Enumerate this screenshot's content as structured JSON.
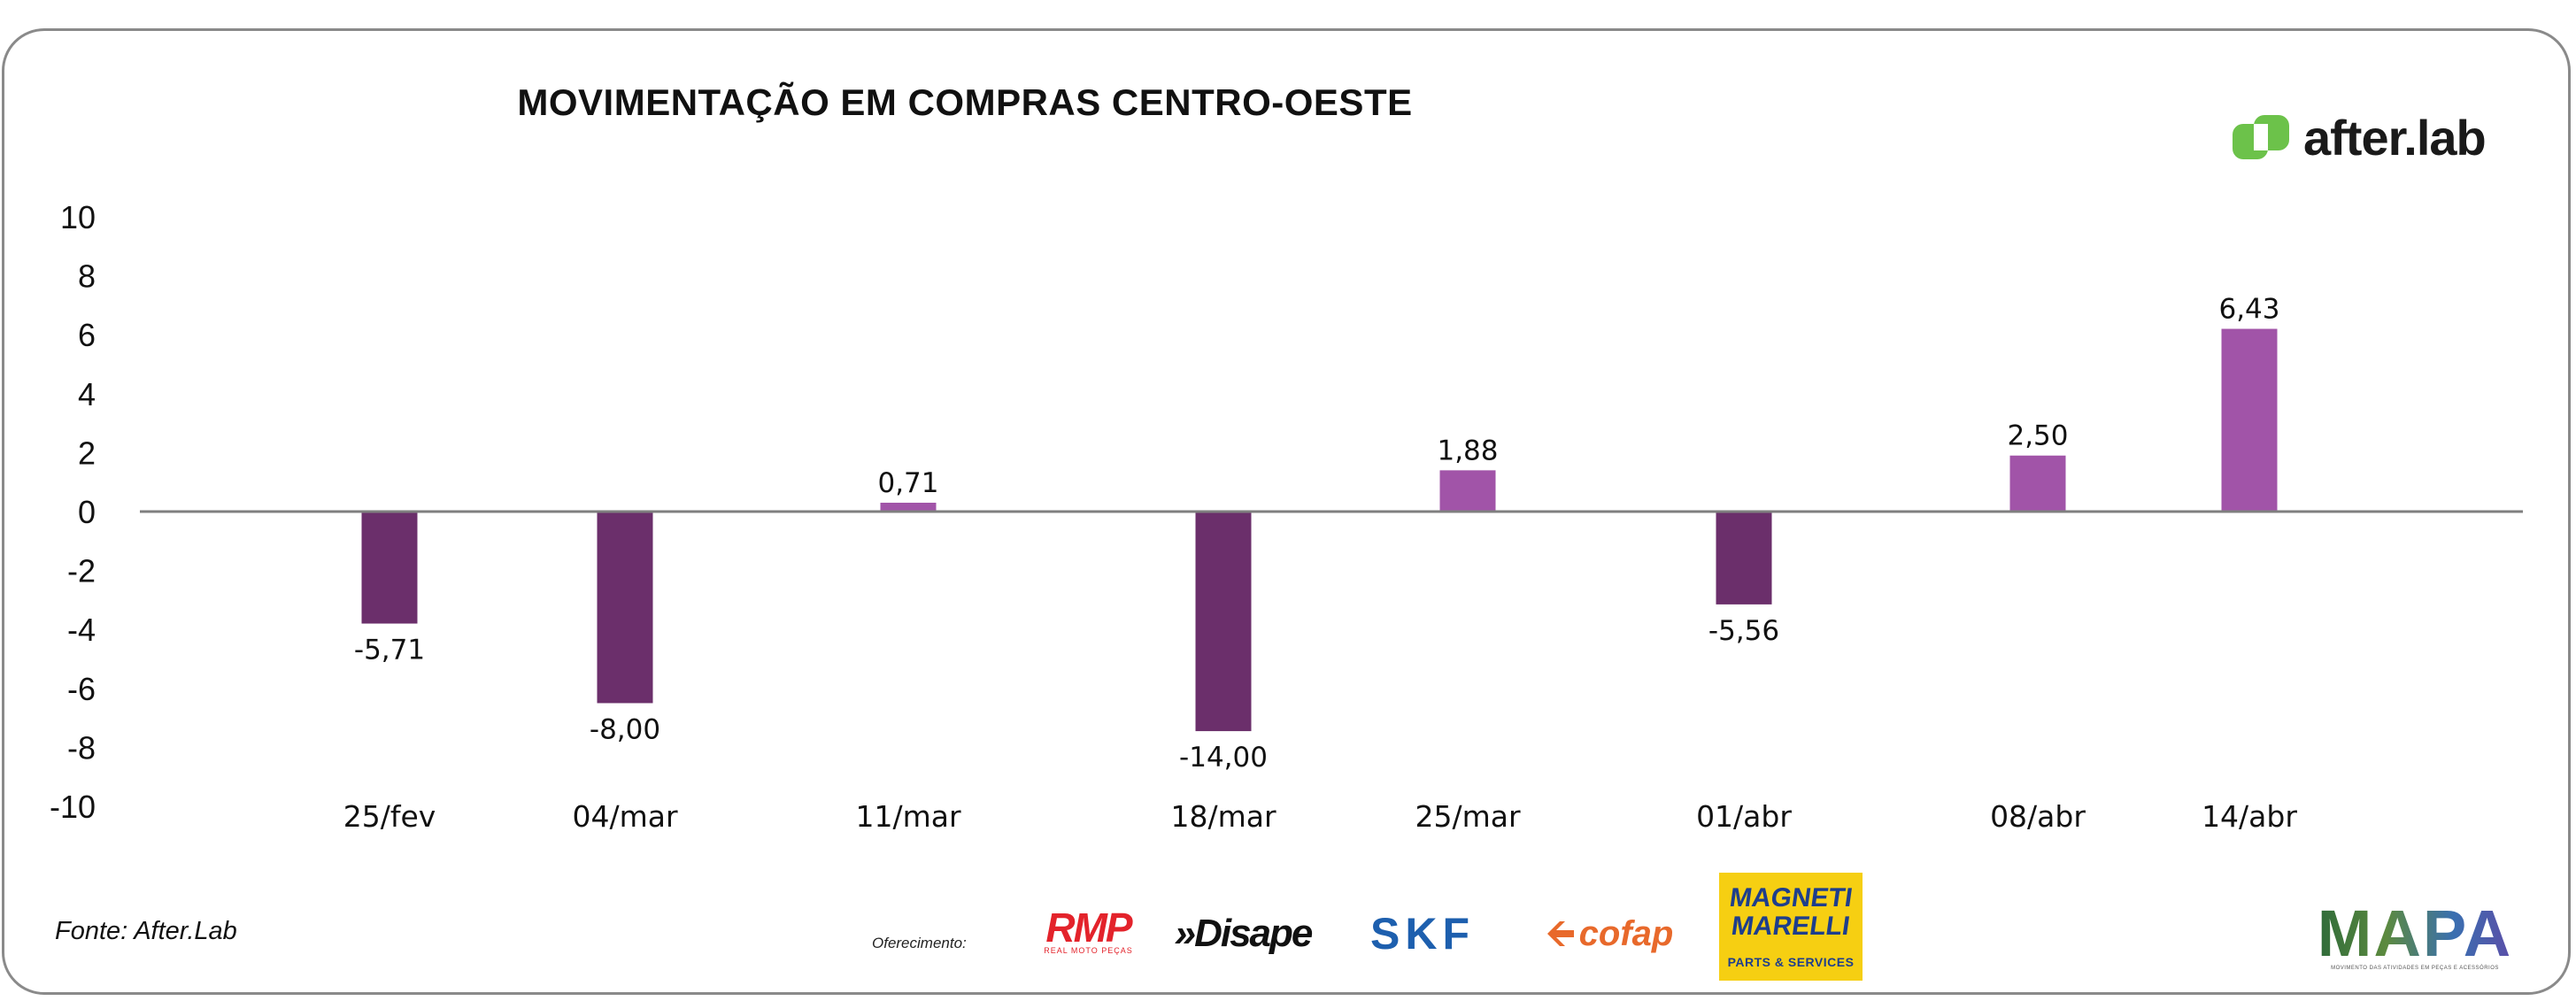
{
  "header": {
    "title": "MOVIMENTAÇÃO EM COMPRAS CENTRO-OESTE"
  },
  "brand": {
    "name": "after.lab",
    "color": "#6cc24a"
  },
  "footer": {
    "source": "Fonte: After.Lab",
    "sponsors_label": "Oferecimento:",
    "sponsors": {
      "rmp": "RMP",
      "rmp_sub": "REAL MOTO PEÇAS",
      "disape": "»Disape",
      "skf": "SKF",
      "cofap": "cofap",
      "magneti_line1": "MAGNETI",
      "magneti_line2": "MARELLI",
      "magneti_sub": "PARTS & SERVICES"
    },
    "mapa": "MAPA",
    "mapa_sub": "MOVIMENTO DAS ATIVIDADES EM PEÇAS E ACESSÓRIOS"
  },
  "chart_data": {
    "type": "bar",
    "title": "MOVIMENTAÇÃO EM COMPRAS CENTRO-OESTE",
    "categories": [
      "25/fev",
      "04/mar",
      "11/mar",
      "18/mar",
      "25/mar",
      "01/abr",
      "08/abr",
      "14/abr"
    ],
    "values": [
      -5.71,
      -8.0,
      0.71,
      -14.0,
      1.88,
      -5.56,
      2.5,
      6.43
    ],
    "value_labels": [
      "-5,71",
      "-8,00",
      "0,71",
      "-14,00",
      "1,88",
      "-5,56",
      "2,50",
      "6,43"
    ],
    "bar_heights": [
      -3.8,
      -6.5,
      0.3,
      -7.45,
      1.4,
      -3.15,
      1.9,
      6.2
    ],
    "yticks": [
      10,
      8,
      6,
      4,
      2,
      0,
      -2,
      -4,
      -6,
      -8,
      -10
    ],
    "ylim": [
      -10,
      10
    ],
    "colors": {
      "positive": "#a154a8",
      "negative": "#6b2f6b",
      "axis": "#7f7f7f"
    },
    "xlabel": "",
    "ylabel": "",
    "legend": "none"
  }
}
